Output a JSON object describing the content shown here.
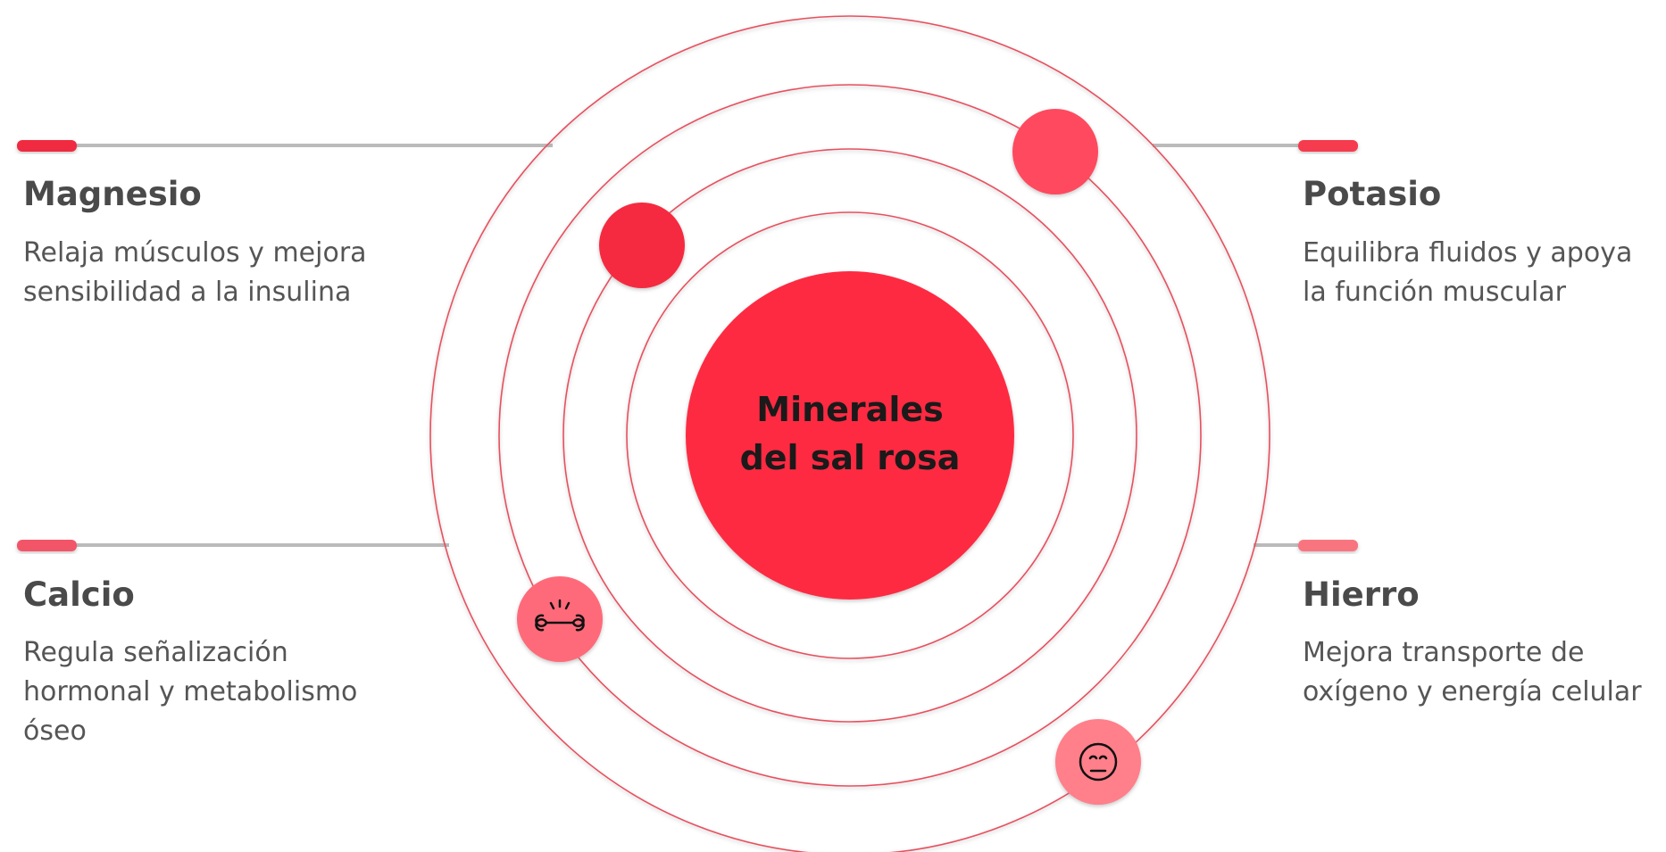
{
  "center": {
    "lines": [
      "Minerales",
      "del sal rosa"
    ]
  },
  "items": [
    {
      "title": "Magnesio",
      "description": [
        "Relaja músculos y mejora",
        "sensibilidad a la insulina"
      ]
    },
    {
      "title": "Potasio",
      "description": [
        "Equilibra fluidos y apoya",
        "la función muscular"
      ]
    },
    {
      "title": "Calcio",
      "description": [
        "Regula señalización",
        "hormonal y metabolismo",
        "óseo"
      ]
    },
    {
      "title": "Hierro",
      "description": [
        "Mejora transporte de",
        "oxígeno y energía celular"
      ]
    }
  ]
}
